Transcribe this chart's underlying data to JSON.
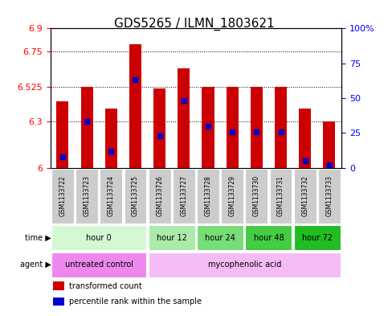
{
  "title": "GDS5265 / ILMN_1803621",
  "samples": [
    "GSM1133722",
    "GSM1133723",
    "GSM1133724",
    "GSM1133725",
    "GSM1133726",
    "GSM1133727",
    "GSM1133728",
    "GSM1133729",
    "GSM1133730",
    "GSM1133731",
    "GSM1133732",
    "GSM1133733"
  ],
  "bar_values": [
    6.43,
    6.525,
    6.38,
    6.8,
    6.51,
    6.64,
    6.525,
    6.525,
    6.525,
    6.525,
    6.38,
    6.3
  ],
  "percentile_values": [
    0.08,
    0.33,
    0.12,
    0.63,
    0.23,
    0.48,
    0.3,
    0.26,
    0.26,
    0.26,
    0.05,
    0.02
  ],
  "ylim_left": [
    6.0,
    6.9
  ],
  "yticks_left": [
    6.0,
    6.3,
    6.525,
    6.75,
    6.9
  ],
  "ytick_labels_left": [
    "6",
    "6.3",
    "6.525",
    "6.75",
    "6.9"
  ],
  "ylim_right": [
    0,
    100
  ],
  "yticks_right": [
    0,
    25,
    50,
    75,
    100
  ],
  "ytick_labels_right": [
    "0",
    "25",
    "50",
    "75",
    "100%"
  ],
  "bar_color": "#cc0000",
  "percentile_color": "#0000cc",
  "bar_bottom": 6.0,
  "dotted_lines": [
    6.3,
    6.525,
    6.75
  ],
  "time_groups": [
    {
      "label": "hour 0",
      "start": 0,
      "end": 4,
      "color": "#d4f7d4"
    },
    {
      "label": "hour 12",
      "start": 4,
      "end": 6,
      "color": "#aaeaaa"
    },
    {
      "label": "hour 24",
      "start": 6,
      "end": 8,
      "color": "#77dd77"
    },
    {
      "label": "hour 48",
      "start": 8,
      "end": 10,
      "color": "#44cc44"
    },
    {
      "label": "hour 72",
      "start": 10,
      "end": 12,
      "color": "#22bb22"
    }
  ],
  "agent_groups": [
    {
      "label": "untreated control",
      "start": 0,
      "end": 4,
      "color": "#ee88ee"
    },
    {
      "label": "mycophenolic acid",
      "start": 4,
      "end": 12,
      "color": "#f5bbf5"
    }
  ],
  "legend_bar_label": "transformed count",
  "legend_pct_label": "percentile rank within the sample",
  "bg_color": "#ffffff",
  "sample_bg_color": "#cccccc",
  "title_fontsize": 11,
  "tick_fontsize": 8,
  "anno_fontsize": 7,
  "bar_width": 0.5
}
